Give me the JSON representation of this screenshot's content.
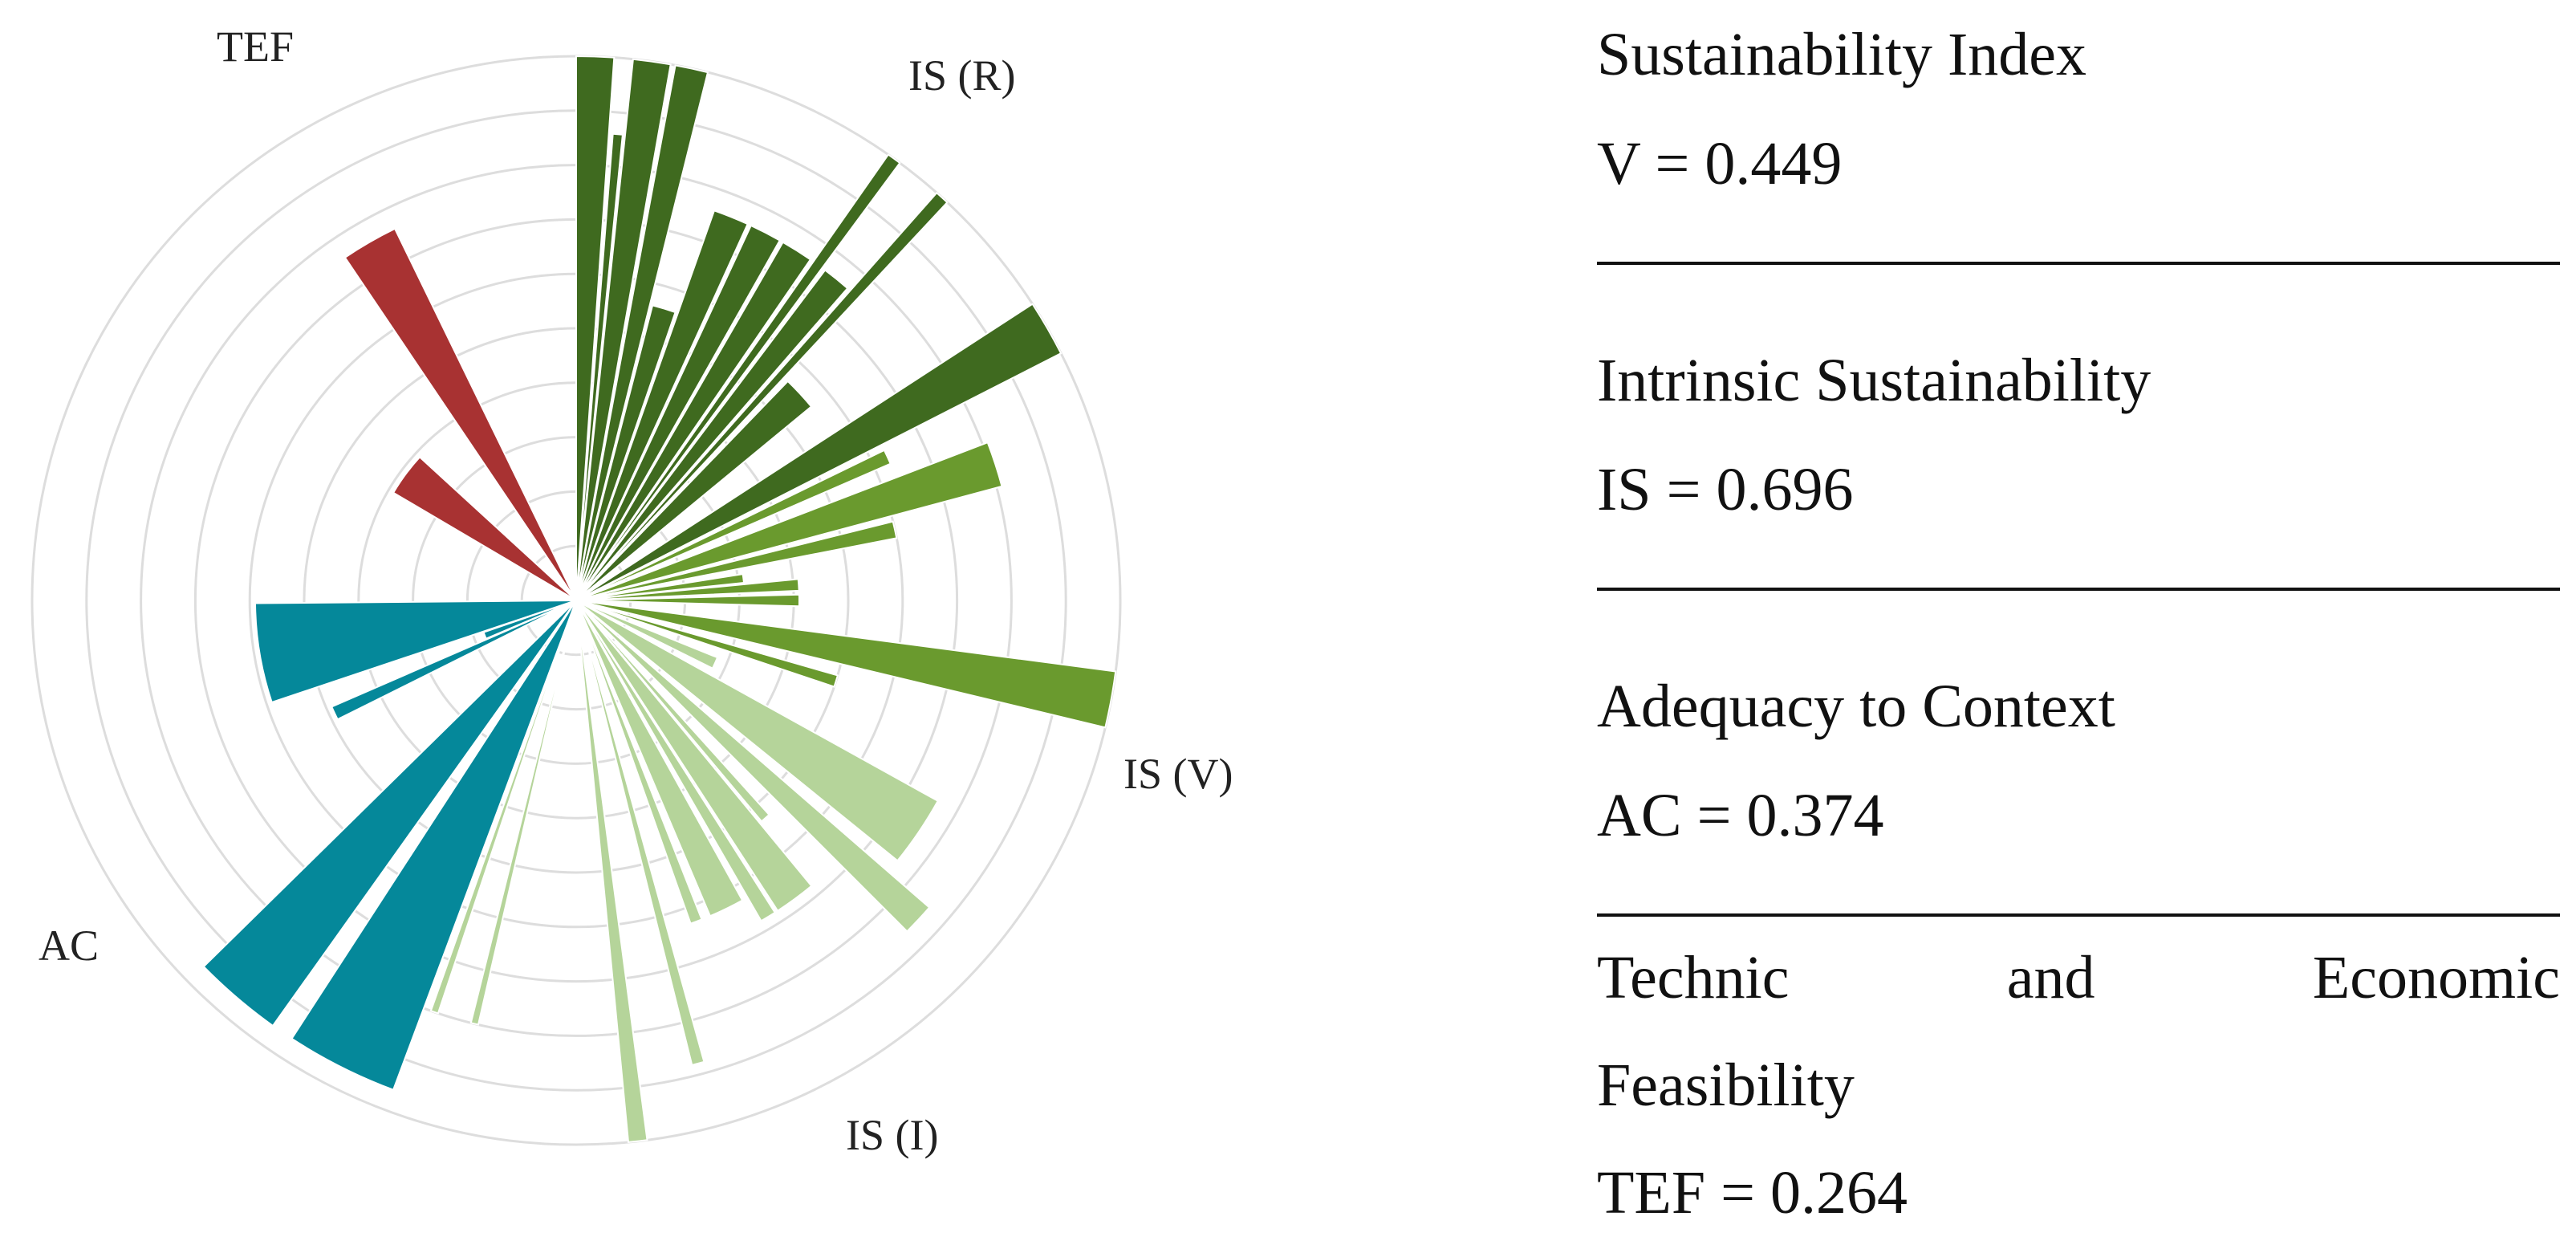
{
  "panel": {
    "sustainability_index": {
      "title": "Sustainability Index",
      "value": "V = 0.449"
    },
    "intrinsic": {
      "title": "Intrinsic Sustainability",
      "value": "IS = 0.696"
    },
    "adequacy": {
      "title": "Adequacy to Context",
      "value": "AC = 0.374"
    },
    "tef": {
      "title_words": [
        "Technic",
        "and",
        "Economic"
      ],
      "title_line2": "Feasibility",
      "value": "TEF = 0.264"
    }
  },
  "chart_data": {
    "type": "polar-bar",
    "title": "",
    "r_range": [
      0,
      1
    ],
    "rings": 10,
    "sector_labels": [
      {
        "id": "tef",
        "text": "TEF"
      },
      {
        "id": "is_r",
        "text": "IS (R)"
      },
      {
        "id": "is_v",
        "text": "IS (V)"
      },
      {
        "id": "is_i",
        "text": "IS (I)"
      },
      {
        "id": "ac",
        "text": "AC"
      }
    ],
    "colors": {
      "IS (R)": "#3f6a1f",
      "IS (V)": "#6a9a2e",
      "IS (I)": "#b5d49a",
      "AC": "#05889a",
      "TEF": "#a83232",
      "grid": "#dddddd"
    },
    "bars": [
      {
        "group": "IS (R)",
        "start_deg": 0.0,
        "width_deg": 4.0,
        "value": 1.0
      },
      {
        "group": "IS (R)",
        "start_deg": 4.5,
        "width_deg": 1.2,
        "value": 0.86
      },
      {
        "group": "IS (R)",
        "start_deg": 6.0,
        "width_deg": 4.0,
        "value": 1.0
      },
      {
        "group": "IS (R)",
        "start_deg": 10.5,
        "width_deg": 3.5,
        "value": 1.0
      },
      {
        "group": "IS (R)",
        "start_deg": 14.5,
        "width_deg": 4.5,
        "value": 0.56
      },
      {
        "group": "IS (R)",
        "start_deg": 19.5,
        "width_deg": 5.0,
        "value": 0.76
      },
      {
        "group": "IS (R)",
        "start_deg": 25.0,
        "width_deg": 4.5,
        "value": 0.76
      },
      {
        "group": "IS (R)",
        "start_deg": 30.0,
        "width_deg": 4.5,
        "value": 0.76
      },
      {
        "group": "IS (R)",
        "start_deg": 35.0,
        "width_deg": 1.5,
        "value": 1.0
      },
      {
        "group": "IS (R)",
        "start_deg": 37.0,
        "width_deg": 4.0,
        "value": 0.76
      },
      {
        "group": "IS (R)",
        "start_deg": 41.5,
        "width_deg": 1.5,
        "value": 1.0
      },
      {
        "group": "IS (R)",
        "start_deg": 44.0,
        "width_deg": 6.5,
        "value": 0.56
      },
      {
        "group": "IS (R)",
        "start_deg": 57.0,
        "width_deg": 6.0,
        "value": 1.0
      },
      {
        "group": "IS (V)",
        "start_deg": 64.0,
        "width_deg": 2.5,
        "value": 0.63
      },
      {
        "group": "IS (V)",
        "start_deg": 69.0,
        "width_deg": 6.0,
        "value": 0.81
      },
      {
        "group": "IS (V)",
        "start_deg": 76.0,
        "width_deg": 3.0,
        "value": 0.6
      },
      {
        "group": "IS (V)",
        "start_deg": 81.0,
        "width_deg": 3.0,
        "value": 0.31
      },
      {
        "group": "IS (V)",
        "start_deg": 84.5,
        "width_deg": 3.0,
        "value": 0.41
      },
      {
        "group": "IS (V)",
        "start_deg": 88.5,
        "width_deg": 3.0,
        "value": 0.41
      },
      {
        "group": "IS (V)",
        "start_deg": 97.5,
        "width_deg": 6.0,
        "value": 1.0
      },
      {
        "group": "IS (V)",
        "start_deg": 106.0,
        "width_deg": 2.5,
        "value": 0.5
      },
      {
        "group": "IS (I)",
        "start_deg": 112.0,
        "width_deg": 4.5,
        "value": 0.28
      },
      {
        "group": "IS (I)",
        "start_deg": 119.0,
        "width_deg": 10.0,
        "value": 0.76
      },
      {
        "group": "IS (I)",
        "start_deg": 131.0,
        "width_deg": 4.0,
        "value": 0.86
      },
      {
        "group": "IS (I)",
        "start_deg": 138.0,
        "width_deg": 2.0,
        "value": 0.53
      },
      {
        "group": "IS (I)",
        "start_deg": 140.5,
        "width_deg": 6.5,
        "value": 0.68
      },
      {
        "group": "IS (I)",
        "start_deg": 147.5,
        "width_deg": 2.5,
        "value": 0.68
      },
      {
        "group": "IS (I)",
        "start_deg": 151.0,
        "width_deg": 6.0,
        "value": 0.63
      },
      {
        "group": "IS (I)",
        "start_deg": 158.5,
        "width_deg": 2.0,
        "value": 0.63
      },
      {
        "group": "IS (I)",
        "start_deg": 164.5,
        "width_deg": 1.5,
        "value": 0.88
      },
      {
        "group": "IS (I)",
        "start_deg": 172.5,
        "width_deg": 2.0,
        "value": 1.0
      },
      {
        "group": "IS (I)",
        "start_deg": 193.0,
        "width_deg": 1.0,
        "value": 0.8
      },
      {
        "group": "IS (I)",
        "start_deg": 198.5,
        "width_deg": 1.0,
        "value": 0.8
      },
      {
        "group": "AC",
        "start_deg": 200.5,
        "width_deg": 12.5,
        "value": 0.96
      },
      {
        "group": "AC",
        "start_deg": 215.5,
        "width_deg": 10.0,
        "value": 0.96
      },
      {
        "group": "AC",
        "start_deg": 243.5,
        "width_deg": 3.0,
        "value": 0.49
      },
      {
        "group": "AC",
        "start_deg": 247.0,
        "width_deg": 4.0,
        "value": 0.18
      },
      {
        "group": "AC",
        "start_deg": 251.5,
        "width_deg": 18.0,
        "value": 0.59
      },
      {
        "group": "TEF",
        "start_deg": 300.5,
        "width_deg": 12.0,
        "value": 0.39
      },
      {
        "group": "TEF",
        "start_deg": 326.0,
        "width_deg": 8.0,
        "value": 0.76
      }
    ]
  }
}
